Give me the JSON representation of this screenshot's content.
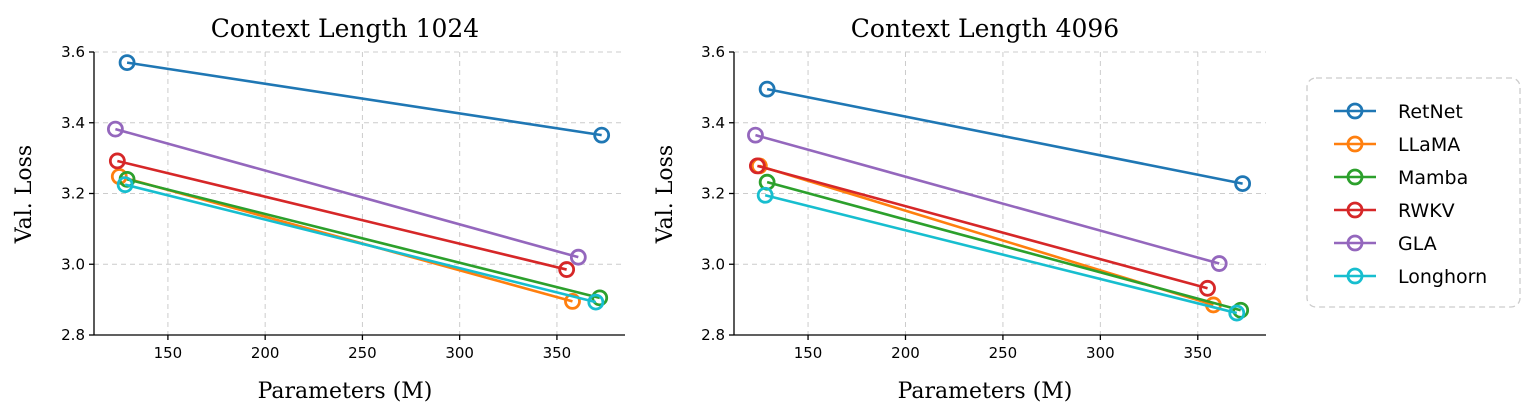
{
  "chart_data": [
    {
      "type": "line",
      "title": "Context Length 1024",
      "xlabel": "Parameters (M)",
      "ylabel": "Val. Loss",
      "xlim": [
        112,
        385
      ],
      "ylim": [
        2.8,
        3.6
      ],
      "xticks": [
        150,
        200,
        250,
        300,
        350
      ],
      "xtick_labels": [
        "150",
        "200",
        "250",
        "300",
        "350"
      ],
      "yticks": [
        2.8,
        3.0,
        3.2,
        3.4,
        3.6
      ],
      "ytick_labels": [
        "2.8",
        "3.0",
        "3.2",
        "3.4",
        "3.6"
      ],
      "grid": true,
      "series": [
        {
          "name": "RetNet",
          "color": "#1f77b4",
          "x": [
            129,
            373
          ],
          "y": [
            3.57,
            3.365
          ]
        },
        {
          "name": "LLaMA",
          "color": "#ff7f0e",
          "x": [
            125,
            358
          ],
          "y": [
            3.248,
            2.895
          ]
        },
        {
          "name": "Mamba",
          "color": "#2ca02c",
          "x": [
            129,
            372
          ],
          "y": [
            3.24,
            2.905
          ]
        },
        {
          "name": "RWKV",
          "color": "#d62728",
          "x": [
            124,
            355
          ],
          "y": [
            3.292,
            2.985
          ]
        },
        {
          "name": "GLA",
          "color": "#9467bd",
          "x": [
            123,
            361
          ],
          "y": [
            3.382,
            3.02
          ]
        },
        {
          "name": "Longhorn",
          "color": "#17becf",
          "x": [
            128,
            370
          ],
          "y": [
            3.225,
            2.893
          ]
        }
      ]
    },
    {
      "type": "line",
      "title": "Context Length 4096",
      "xlabel": "Parameters (M)",
      "ylabel": "Val. Loss",
      "xlim": [
        112,
        385
      ],
      "ylim": [
        2.8,
        3.6
      ],
      "xticks": [
        150,
        200,
        250,
        300,
        350
      ],
      "xtick_labels": [
        "150",
        "200",
        "250",
        "300",
        "350"
      ],
      "yticks": [
        2.8,
        3.0,
        3.2,
        3.4,
        3.6
      ],
      "ytick_labels": [
        "2.8",
        "3.0",
        "3.2",
        "3.4",
        "3.6"
      ],
      "grid": true,
      "series": [
        {
          "name": "RetNet",
          "color": "#1f77b4",
          "x": [
            129,
            373
          ],
          "y": [
            3.495,
            3.228
          ]
        },
        {
          "name": "LLaMA",
          "color": "#ff7f0e",
          "x": [
            125,
            358
          ],
          "y": [
            3.278,
            2.885
          ]
        },
        {
          "name": "Mamba",
          "color": "#2ca02c",
          "x": [
            129,
            372
          ],
          "y": [
            3.232,
            2.87
          ]
        },
        {
          "name": "RWKV",
          "color": "#d62728",
          "x": [
            124,
            355
          ],
          "y": [
            3.278,
            2.932
          ]
        },
        {
          "name": "GLA",
          "color": "#9467bd",
          "x": [
            123,
            361
          ],
          "y": [
            3.365,
            3.002
          ]
        },
        {
          "name": "Longhorn",
          "color": "#17becf",
          "x": [
            128,
            370
          ],
          "y": [
            3.195,
            2.862
          ]
        }
      ]
    }
  ],
  "legend": {
    "position": "right",
    "entries": [
      {
        "label": "RetNet",
        "color": "#1f77b4"
      },
      {
        "label": "LLaMA",
        "color": "#ff7f0e"
      },
      {
        "label": "Mamba",
        "color": "#2ca02c"
      },
      {
        "label": "RWKV",
        "color": "#d62728"
      },
      {
        "label": "GLA",
        "color": "#9467bd"
      },
      {
        "label": "Longhorn",
        "color": "#17becf"
      }
    ]
  }
}
